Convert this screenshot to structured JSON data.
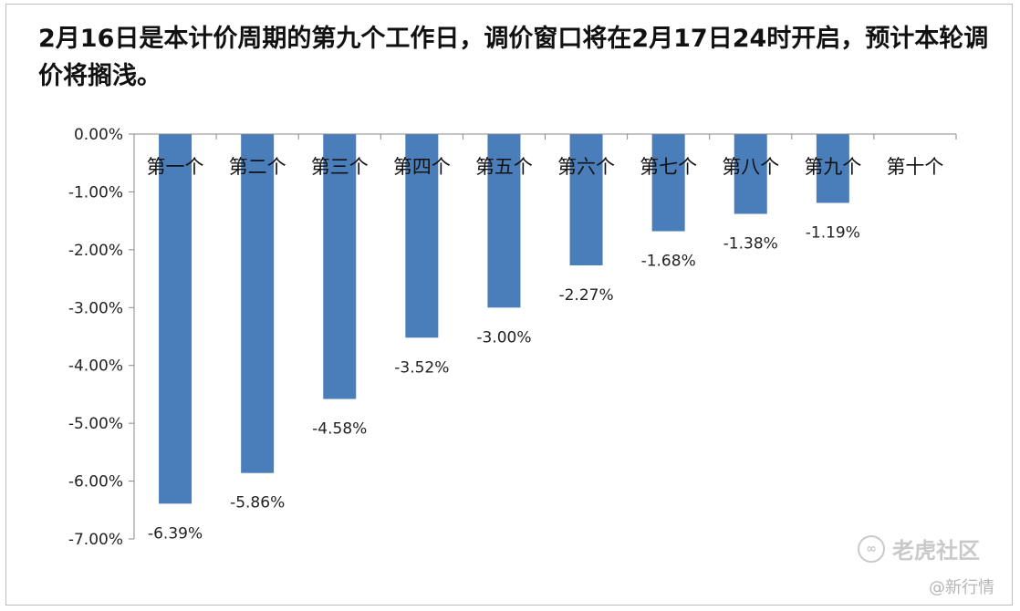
{
  "chart_data": {
    "type": "bar",
    "title": "2月16日是本计价周期的第九个工作日，调价窗口将在2月17日24时开启，预计本轮调价将搁浅。",
    "categories": [
      "第一个",
      "第二个",
      "第三个",
      "第四个",
      "第五个",
      "第六个",
      "第七个",
      "第八个",
      "第九个",
      "第十个"
    ],
    "series": [
      {
        "values": [
          -6.39,
          -5.86,
          -4.58,
          -3.52,
          -3.0,
          -2.27,
          -1.68,
          -1.38,
          -1.19,
          null
        ]
      }
    ],
    "data_labels": [
      "-6.39%",
      "-5.86%",
      "-4.58%",
      "-3.52%",
      "-3.00%",
      "-2.27%",
      "-1.68%",
      "-1.38%",
      "-1.19%",
      ""
    ],
    "y_ticks": [
      "0.00%",
      "-1.00%",
      "-2.00%",
      "-3.00%",
      "-4.00%",
      "-5.00%",
      "-6.00%",
      "-7.00%"
    ],
    "ylim": [
      -7,
      0
    ],
    "bar_color": "#4a7ebb",
    "grid": false,
    "legend": "none"
  },
  "watermark": {
    "text": "老虎社区",
    "source": "@新行情"
  }
}
